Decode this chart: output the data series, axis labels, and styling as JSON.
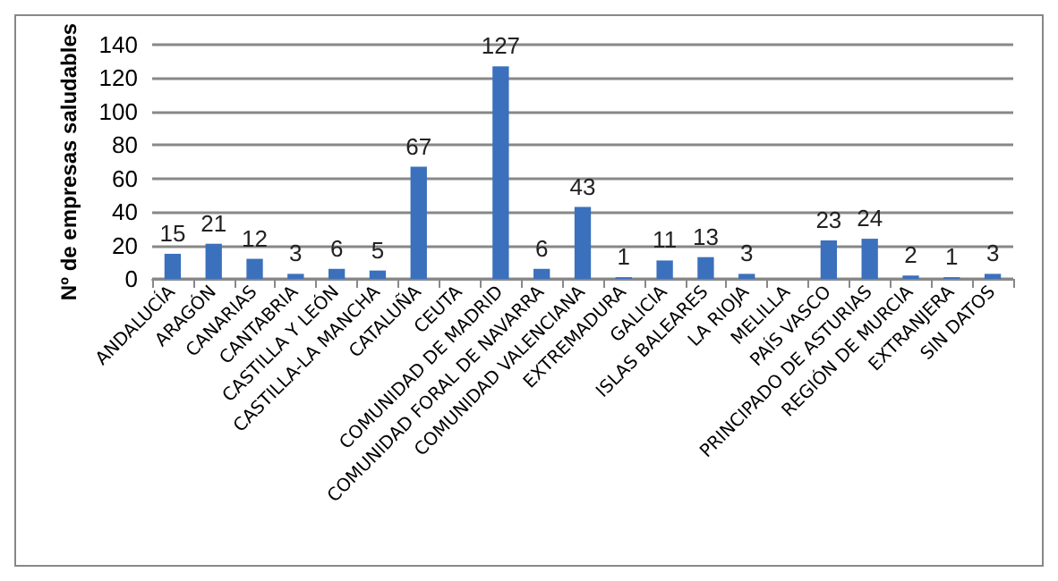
{
  "chart_data": {
    "type": "bar",
    "ylabel": "Nº de empresas saludables",
    "categories": [
      "ANDALUCÍA",
      "ARAGÓN",
      "CANARIAS",
      "CANTABRIA",
      "CASTILLA Y LEÓN",
      "CASTILLA-LA MANCHA",
      "CATALUÑA",
      "CEUTA",
      "COMUNIDAD DE MADRID",
      "COMUNIDAD FORAL DE NAVARRA",
      "COMUNIDAD VALENCIANA",
      "EXTREMADURA",
      "GALICIA",
      "ISLAS BALEARES",
      "LA RIOJA",
      "MELILLA",
      "PAÍS VASCO",
      "PRINCIPADO DE ASTURIAS",
      "REGIÓN DE MURCIA",
      "EXTRANJERA",
      "SIN DATOS"
    ],
    "values": [
      15,
      21,
      12,
      3,
      6,
      5,
      67,
      null,
      127,
      6,
      43,
      1,
      11,
      13,
      3,
      null,
      23,
      24,
      2,
      1,
      3
    ],
    "color": "#3b70bd",
    "ylim": [
      0,
      140
    ],
    "yticks": [
      0,
      20,
      40,
      60,
      80,
      100,
      120,
      140
    ],
    "grid": "y",
    "data_labels": true
  }
}
